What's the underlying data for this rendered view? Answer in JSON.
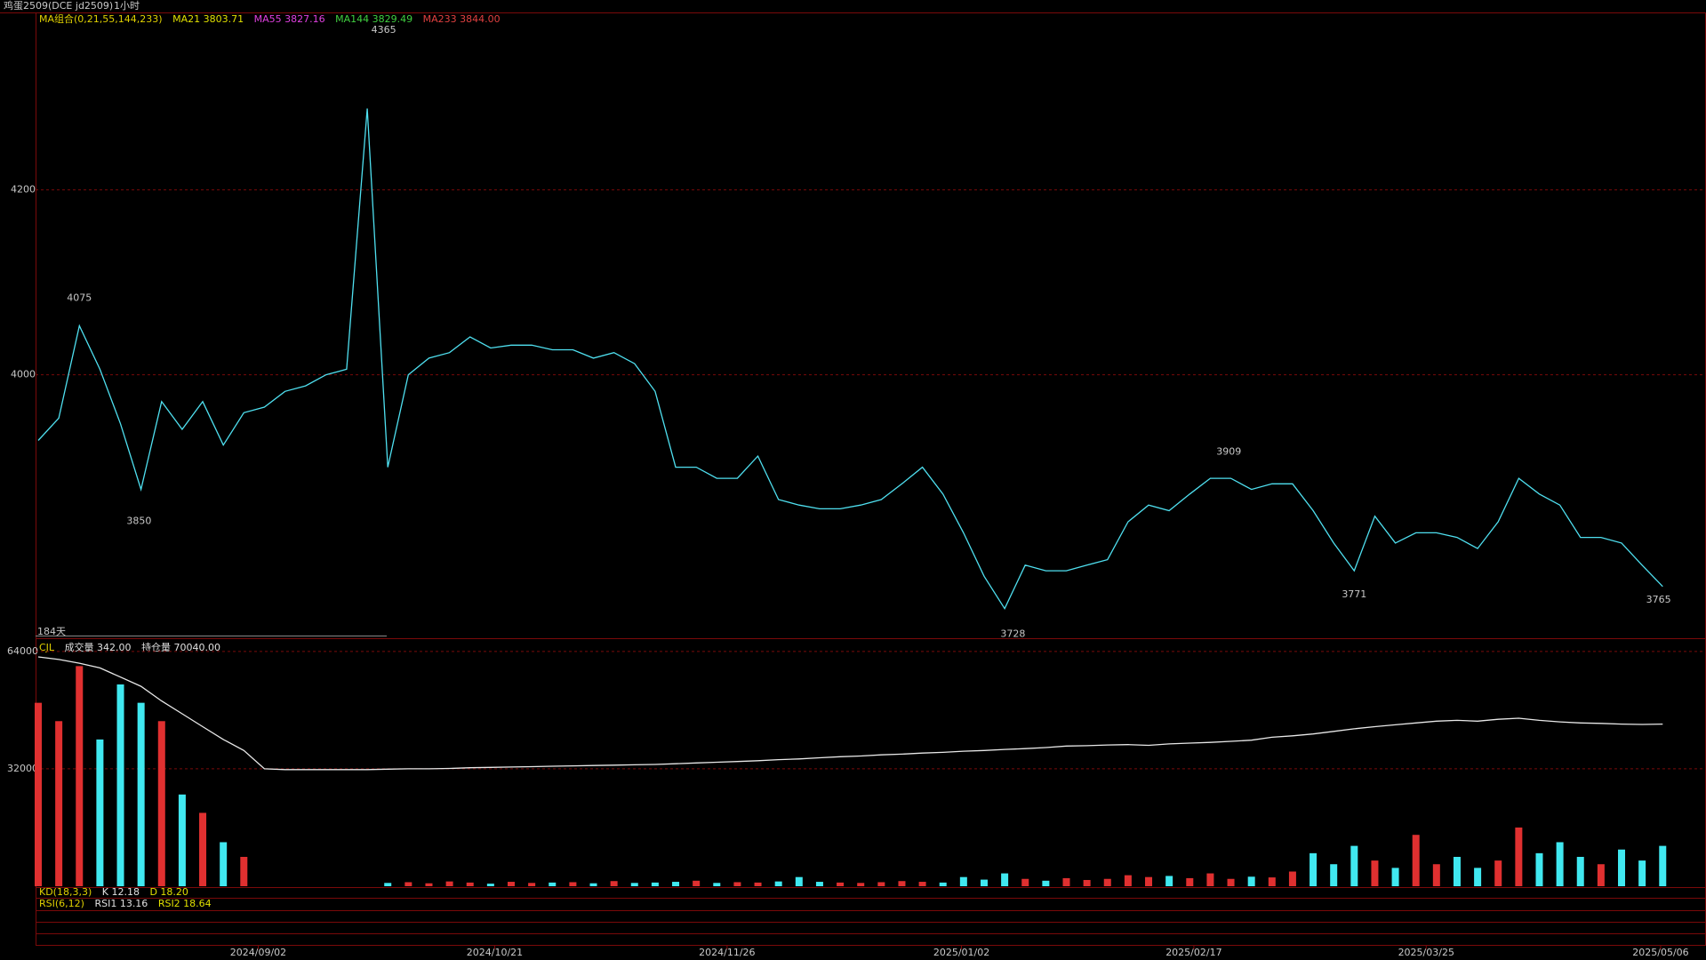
{
  "header": {
    "symbol": "鸡蛋2509(DCE  jd2509)",
    "period": "1小时"
  },
  "ma_legend": [
    "MA组合(0,21,55,144,233)",
    "MA21 3803.71",
    "MA55 3827.16",
    "MA144 3829.49",
    "MA233 3844.00"
  ],
  "range_label": "184天",
  "kd_legend": [
    "KD(18,3,3)",
    "K 12.18",
    "D 18.20"
  ],
  "rsi_legend": [
    "RSI(6,12)",
    "RSI1 13.16",
    "RSI2 18.64"
  ],
  "chart_data": [
    {
      "type": "line",
      "x": [
        0,
        1,
        2,
        3,
        4,
        5,
        6,
        7,
        8,
        9,
        10,
        11,
        12,
        13,
        14,
        15,
        16,
        17,
        18,
        19,
        20,
        21,
        22,
        23,
        24,
        25,
        26,
        27,
        28,
        29,
        30,
        31,
        32,
        33,
        34,
        35,
        36,
        37,
        38,
        39,
        40,
        41,
        42,
        43,
        44,
        45,
        46,
        47,
        48,
        49,
        50,
        51,
        52,
        53,
        54,
        55,
        56,
        57,
        58,
        59,
        60,
        61,
        62,
        63,
        64,
        65,
        66,
        67,
        68,
        69,
        70,
        71,
        72,
        73,
        74,
        75,
        76,
        77,
        78,
        79
      ],
      "series": [
        {
          "color": "#4fe0f0",
          "values": [
            3929,
            3953,
            4053,
            4006,
            3947,
            3876,
            3971,
            3941,
            3971,
            3924,
            3959,
            3965,
            3982,
            3988,
            4000,
            4006,
            4288,
            3900,
            4000,
            4018,
            4024,
            4041,
            4029,
            4032,
            4032,
            4027,
            4027,
            4018,
            4024,
            4012,
            3982,
            3900,
            3900,
            3888,
            3888,
            3912,
            3865,
            3859,
            3855,
            3855,
            3859,
            3865,
            3882,
            3900,
            3871,
            3829,
            3782,
            3747,
            3794,
            3788,
            3788,
            3794,
            3800,
            3841,
            3859,
            3853,
            3871,
            3888,
            3888,
            3876,
            3882,
            3882,
            3853,
            3818,
            3788,
            3847,
            3818,
            3829,
            3829,
            3824,
            3812,
            3841,
            3888,
            3871,
            3859,
            3824,
            3824,
            3818,
            3794,
            3771
          ]
        }
      ],
      "xlim": [
        -0.4,
        79.6
      ],
      "ylim": [
        3715,
        4391
      ],
      "yticks": [
        4000,
        4200
      ],
      "xticks": [
        {
          "value": 10.7,
          "label": "2024/09/02"
        },
        {
          "value": 22.2,
          "label": "2024/10/21"
        },
        {
          "value": 33.5,
          "label": "2024/11/26"
        },
        {
          "value": 44.9,
          "label": "2025/01/02"
        },
        {
          "value": 56.2,
          "label": "2025/02/17"
        },
        {
          "value": 67.5,
          "label": "2025/03/25"
        },
        {
          "value": 78.9,
          "label": "2025/05/06"
        }
      ],
      "grid": true,
      "annotations": [
        {
          "value": 4365,
          "index": 16.8,
          "placement": "above"
        },
        {
          "value": 4075,
          "index": 2,
          "placement": "above"
        },
        {
          "value": 3850,
          "index": 4.9,
          "placement": "below"
        },
        {
          "value": 3728,
          "index": 47.4,
          "placement": "below"
        },
        {
          "value": 3909,
          "index": 57.9,
          "placement": "above"
        },
        {
          "value": 3771,
          "index": 64,
          "placement": "below"
        },
        {
          "value": 3765,
          "index": 78.8,
          "placement": "below"
        }
      ]
    },
    {
      "type": "bar",
      "legend_text": [
        "CJL",
        "成交量 342.00",
        "持仓量 70040.00"
      ],
      "up_color": "#e03030",
      "down_color": "#40e8f0",
      "series": [
        {
          "values": [
            50000,
            45000,
            60000,
            40000,
            55000,
            50000,
            45000,
            25000,
            20000,
            12000,
            8000,
            null,
            null,
            null,
            null,
            null,
            null,
            900,
            1100,
            800,
            1300,
            1000,
            700,
            1200,
            900,
            1000,
            1100,
            800,
            1400,
            900,
            1000,
            1200,
            1500,
            900,
            1100,
            1000,
            1300,
            2500,
            1200,
            1000,
            900,
            1100,
            1400,
            1200,
            1000,
            2500,
            1800,
            3500,
            2000,
            1500,
            2200,
            1700,
            2000,
            3000,
            2500,
            2800,
            2200,
            3500,
            2000,
            2600,
            2400,
            4000,
            9000,
            6000,
            11000,
            7000,
            5000,
            14000,
            6000,
            8000,
            5000,
            7000,
            16000,
            9000,
            12000,
            8000,
            6000,
            10000,
            7000,
            11000
          ]
        },
        {
          "type": "line",
          "color": "#e8e8e8",
          "values": [
            62500,
            61800,
            60800,
            59500,
            57000,
            54500,
            50500,
            47000,
            43500,
            40000,
            37000,
            32000,
            31800,
            31800,
            31800,
            31800,
            31800,
            31900,
            32000,
            32000,
            32100,
            32300,
            32400,
            32500,
            32600,
            32700,
            32800,
            32900,
            33000,
            33100,
            33200,
            33400,
            33600,
            33800,
            34000,
            34200,
            34500,
            34700,
            35000,
            35300,
            35500,
            35800,
            36000,
            36300,
            36500,
            36800,
            37000,
            37300,
            37500,
            37800,
            38200,
            38300,
            38500,
            38600,
            38400,
            38800,
            39000,
            39200,
            39500,
            39800,
            40600,
            41000,
            41500,
            42200,
            42900,
            43500,
            44000,
            44500,
            45000,
            45200,
            45000,
            45500,
            45800,
            45200,
            44800,
            44500,
            44400,
            44200,
            44100,
            44200
          ]
        }
      ],
      "ylim": [
        0,
        67600
      ],
      "yticks": [
        32000,
        64000
      ],
      "grid": true
    }
  ]
}
